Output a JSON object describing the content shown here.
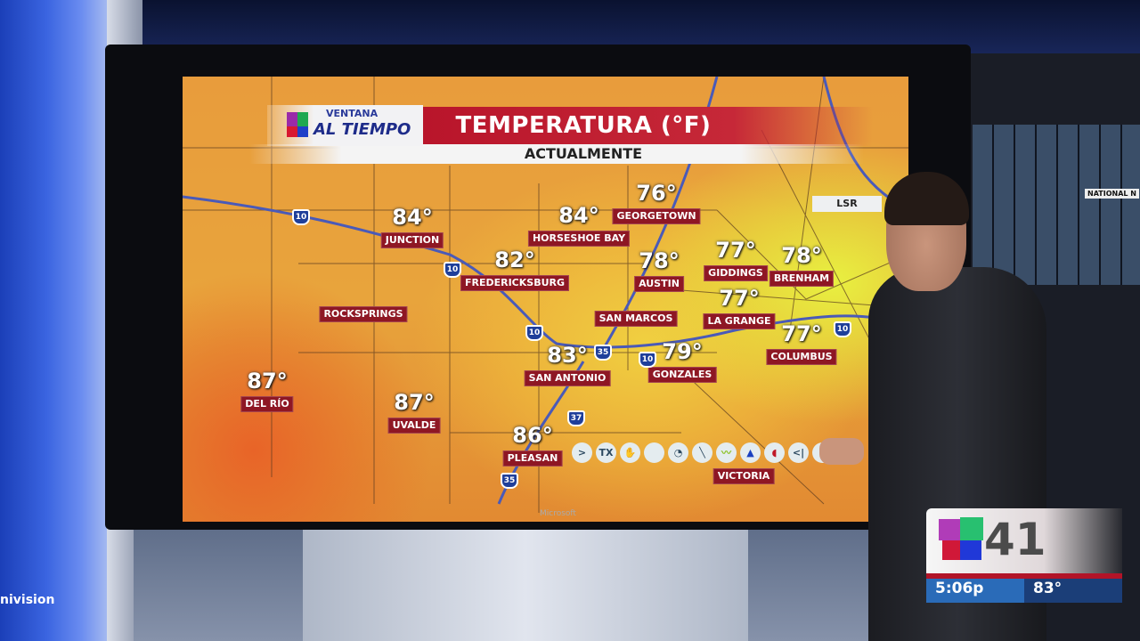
{
  "graphic": {
    "brand_top": "VENTANA",
    "brand_bottom": "AL TIEMPO",
    "title": "TEMPERATURA (°F)",
    "subtitle": "ACTUALMENTE",
    "overlay_label": "LSR"
  },
  "cities": [
    {
      "name": "JUNCTION",
      "temp": "84°"
    },
    {
      "name": "HORSESHOE BAY",
      "temp": "84°"
    },
    {
      "name": "GEORGETOWN",
      "temp": "76°"
    },
    {
      "name": "FREDERICKSBURG",
      "temp": "82°"
    },
    {
      "name": "AUSTIN",
      "temp": "78°"
    },
    {
      "name": "GIDDINGS",
      "temp": "77°"
    },
    {
      "name": "BRENHAM",
      "temp": "78°"
    },
    {
      "name": "ROCKSPRINGS",
      "temp": ""
    },
    {
      "name": "SAN MARCOS",
      "temp": ""
    },
    {
      "name": "LA GRANGE",
      "temp": "77°"
    },
    {
      "name": "COLUMBUS",
      "temp": "77°"
    },
    {
      "name": "SAN ANTONIO",
      "temp": "83°"
    },
    {
      "name": "GONZALES",
      "temp": "79°"
    },
    {
      "name": "DEL RÍO",
      "temp": "87°"
    },
    {
      "name": "UVALDE",
      "temp": "87°"
    },
    {
      "name": "PLEASAN",
      "temp": "86°"
    },
    {
      "name": "VICTORIA",
      "temp": ""
    }
  ],
  "highways": [
    "10",
    "10",
    "10",
    "10",
    "10",
    "35",
    "35",
    "37"
  ],
  "toolbar": [
    ">",
    "TX",
    "hand-icon",
    "blank-icon",
    "radar-icon",
    "pen-icon",
    "front-icon",
    "cold-front-icon",
    "warm-front-icon",
    "<|",
    "?",
    "more-icon"
  ],
  "monitor_brand": "Microsoft",
  "studio_wall_text": "nivision",
  "background_monitor_text": "NATIONAL N",
  "bug": {
    "channel": "41",
    "time": "5:06p",
    "temp": "83°",
    "accent": "#b21428",
    "bar": "#2a6bb8"
  }
}
